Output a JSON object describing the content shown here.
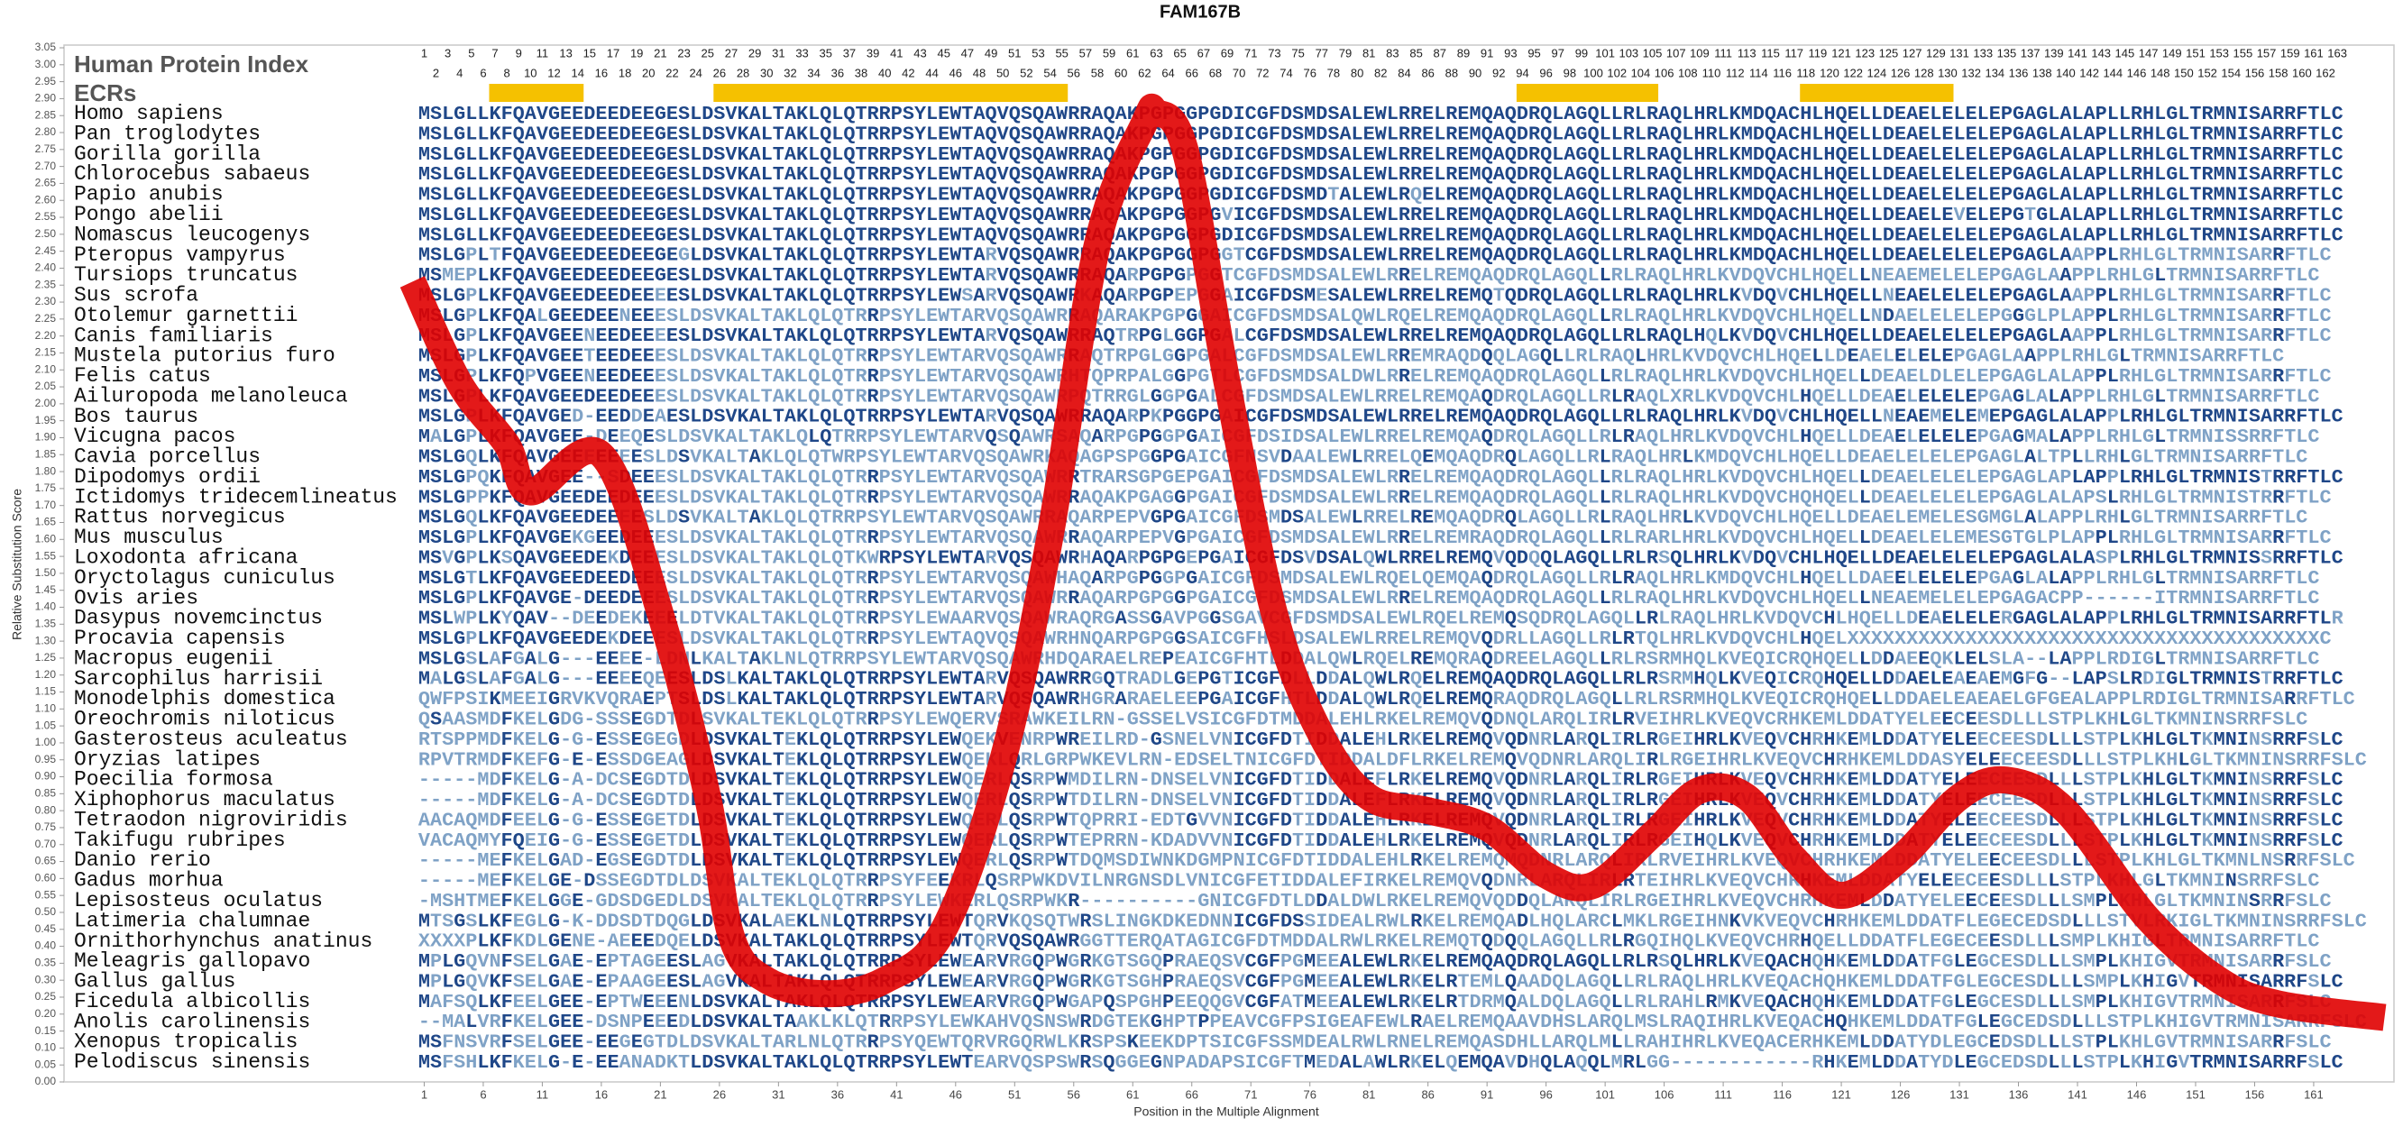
{
  "chart_data": {
    "type": "line",
    "title": "FAM167B",
    "panel_title": "Human Protein Index",
    "ecr_label": "ECRs",
    "xlabel": "Position in the Multiple Alignment",
    "ylabel": "Relative Substitution Score",
    "color": "#e00000",
    "xlim": [
      -29.5,
      167.8
    ],
    "ylim": [
      0,
      3.05
    ],
    "xticks": [
      1,
      6,
      11,
      16,
      21,
      26,
      31,
      36,
      41,
      46,
      51,
      56,
      61,
      66,
      71,
      76,
      81,
      86,
      91,
      96,
      101,
      106,
      111,
      116,
      121,
      126,
      131,
      136,
      141,
      146,
      151,
      156,
      161
    ],
    "yticks": [
      {
        "value": 0,
        "label": "0.00"
      },
      {
        "value": 0.05,
        "label": "0.05"
      },
      {
        "value": 0.1,
        "label": "0.10"
      },
      {
        "value": 0.15,
        "label": "0.15"
      },
      {
        "value": 0.2,
        "label": "0.20"
      },
      {
        "value": 0.25,
        "label": "0.25"
      },
      {
        "value": 0.3,
        "label": "0.30"
      },
      {
        "value": 0.35,
        "label": "0.35"
      },
      {
        "value": 0.4,
        "label": "0.40"
      },
      {
        "value": 0.45,
        "label": "0.45"
      },
      {
        "value": 0.5,
        "label": "0.50"
      },
      {
        "value": 0.55,
        "label": "0.55"
      },
      {
        "value": 0.6,
        "label": "0.60"
      },
      {
        "value": 0.65,
        "label": "0.65"
      },
      {
        "value": 0.7,
        "label": "0.70"
      },
      {
        "value": 0.75,
        "label": "0.75"
      },
      {
        "value": 0.8,
        "label": "0.80"
      },
      {
        "value": 0.85,
        "label": "0.85"
      },
      {
        "value": 0.9,
        "label": "0.90"
      },
      {
        "value": 0.95,
        "label": "0.95"
      },
      {
        "value": 1,
        "label": "1.00"
      },
      {
        "value": 1.05,
        "label": "1.05"
      },
      {
        "value": 1.1,
        "label": "1.10"
      },
      {
        "value": 1.15,
        "label": "1.15"
      },
      {
        "value": 1.2,
        "label": "1.20"
      },
      {
        "value": 1.25,
        "label": "1.25"
      },
      {
        "value": 1.3,
        "label": "1.30"
      },
      {
        "value": 1.35,
        "label": "1.35"
      },
      {
        "value": 1.4,
        "label": "1.40"
      },
      {
        "value": 1.45,
        "label": "1.45"
      },
      {
        "value": 1.5,
        "label": "1.50"
      },
      {
        "value": 1.55,
        "label": "1.55"
      },
      {
        "value": 1.6,
        "label": "1.60"
      },
      {
        "value": 1.65,
        "label": "1.65"
      },
      {
        "value": 1.7,
        "label": "1.70"
      },
      {
        "value": 1.75,
        "label": "1.75"
      },
      {
        "value": 1.8,
        "label": "1.80"
      },
      {
        "value": 1.85,
        "label": "1.85"
      },
      {
        "value": 1.9,
        "label": "1.90"
      },
      {
        "value": 1.95,
        "label": "1.95"
      },
      {
        "value": 2,
        "label": "2.00"
      },
      {
        "value": 2.05,
        "label": "2.05"
      },
      {
        "value": 2.1,
        "label": "2.10"
      },
      {
        "value": 2.15,
        "label": "2.15"
      },
      {
        "value": 2.2,
        "label": "2.20"
      },
      {
        "value": 2.25,
        "label": "2.25"
      },
      {
        "value": 2.3,
        "label": "2.30"
      },
      {
        "value": 2.35,
        "label": "2.35"
      },
      {
        "value": 2.4,
        "label": "2.40"
      },
      {
        "value": 2.45,
        "label": "2.45"
      },
      {
        "value": 2.5,
        "label": "2.50"
      },
      {
        "value": 2.55,
        "label": "2.55"
      },
      {
        "value": 2.6,
        "label": "2.60"
      },
      {
        "value": 2.65,
        "label": "2.65"
      },
      {
        "value": 2.7,
        "label": "2.70"
      },
      {
        "value": 2.75,
        "label": "2.75"
      },
      {
        "value": 2.8,
        "label": "2.80"
      },
      {
        "value": 2.85,
        "label": "2.85"
      },
      {
        "value": 2.9,
        "label": "2.90"
      },
      {
        "value": 2.95,
        "label": "2.95"
      },
      {
        "value": 3,
        "label": "3.00"
      },
      {
        "value": 3.05,
        "label": "3.05"
      }
    ],
    "x": [
      0,
      4,
      8,
      10,
      16,
      21,
      25,
      27,
      30,
      35,
      40,
      45,
      50,
      54,
      58,
      62,
      63,
      65.5,
      69,
      73,
      77,
      81,
      86,
      91,
      96,
      100,
      105,
      109,
      113,
      117,
      121,
      126,
      131,
      135,
      140,
      147,
      153,
      158,
      167
    ],
    "values": [
      2.36,
      2.06,
      1.88,
      1.74,
      1.85,
      1.38,
      0.84,
      0.43,
      0.3,
      0.26,
      0.3,
      0.45,
      0.95,
      1.61,
      2.47,
      2.83,
      2.86,
      2.74,
      2.06,
      1.38,
      1.02,
      0.84,
      0.8,
      0.75,
      0.61,
      0.58,
      0.73,
      0.86,
      0.84,
      0.66,
      0.55,
      0.66,
      0.84,
      0.89,
      0.8,
      0.48,
      0.3,
      0.23,
      0.19
    ],
    "ecrs": [
      {
        "start": 7,
        "end": 14,
        "color": "#f5c100"
      },
      {
        "start": 26,
        "end": 55,
        "color": "#f5c100"
      },
      {
        "start": 94,
        "end": 105,
        "color": "#f5c100"
      },
      {
        "start": 118,
        "end": 130,
        "color": "#f5c100"
      }
    ],
    "positions": [
      1,
      2,
      3,
      4,
      5,
      6,
      7,
      8,
      9,
      10,
      11,
      12,
      13,
      14,
      15,
      16,
      17,
      18,
      19,
      20,
      21,
      22,
      23,
      24,
      25,
      26,
      27,
      28,
      29,
      30,
      31,
      32,
      33,
      34,
      35,
      36,
      37,
      38,
      39,
      40,
      41,
      42,
      43,
      44,
      45,
      46,
      47,
      48,
      49,
      50,
      51,
      52,
      53,
      54,
      55,
      56,
      57,
      58,
      59,
      60,
      61,
      62,
      63,
      64,
      65,
      66,
      67,
      68,
      69,
      70,
      71,
      72,
      73,
      74,
      75,
      76,
      77,
      78,
      79,
      80,
      81,
      82,
      83,
      84,
      85,
      86,
      87,
      88,
      89,
      90,
      91,
      92,
      93,
      94,
      95,
      96,
      97,
      98,
      99,
      100,
      101,
      102,
      103,
      104,
      105,
      106,
      107,
      108,
      109,
      110,
      111,
      112,
      113,
      114,
      115,
      116,
      117,
      118,
      119,
      120,
      121,
      122,
      123,
      124,
      125,
      126,
      127,
      128,
      129,
      130,
      131,
      132,
      133,
      134,
      135,
      136,
      137,
      138,
      139,
      140,
      141,
      142,
      143,
      144,
      145,
      146,
      147,
      148,
      149,
      150,
      151,
      152,
      153,
      154,
      155,
      156,
      157,
      158,
      159,
      160,
      161,
      162,
      163
    ],
    "alignment": [
      {
        "species": "Homo sapiens",
        "sequence": "MSLGLLKFQAVGEEDEEDEEGESLDSVKALTAKLQLQTRRPSYLEWTAQVQSQAWRRAQAKPGPGGPGDICGFDSMDSALEWLRRELREMQAQDRQLAGQLLRLRAQLHRLKMDQACHLHQELLDEAELELELEPGAGLALAPLLRHLGLTRMNISARRFTLC"
      },
      {
        "species": "Pan troglodytes",
        "sequence": "MSLGLLKFQAVGEEDEEDEEGESLDSVKALTAKLQLQTRRPSYLEWTAQVQSQAWRRAQAKPGPGGPGDICGFDSMDSALEWLRRELREMQAQDRQLAGQLLRLRAQLHRLKMDQACHLHQELLDEAELELELEPGAGLALAPLLRHLGLTRMNISARRFTLC"
      },
      {
        "species": "Gorilla gorilla",
        "sequence": "MSLGLLKFQAVGEEDEEDEEGESLDSVKALTAKLQLQTRRPSYLEWTAQVQSQAWRRAQAKPGPGGPGDICGFDSMDSALEWLRRELREMQAQDRQLAGQLLRLRAQLHRLKMDQACHLHQELLDEAELELELEPGAGLALAPLLRHLGLTRMNISARRFTLC"
      },
      {
        "species": "Chlorocebus sabaeus",
        "sequence": "MSLGLLKFQAVGEEDEEDEEGESLDSVKALTAKLQLQTRRPSYLEWTAQVQSQAWRRAQAKPGPGGPGDICGFDSMDSALEWLRRELREMQAQDRQLAGQLLRLRAQLHRLKMDQACHLHQELLDEAELELELEPGAGLALAPLLRHLGLTRMNISARRFTLC"
      },
      {
        "species": "Papio anubis",
        "sequence": "MSLGLLKFQAVGEEDEEDEEGESLDSVKALTAKLQLQTRRPSYLEWTAQVQSQAWRRAQAKPGPGGPGDICGFDSMDTALEWLRQELREMQAQDRQLAGQLLRLRAQLHRLKMDQACHLHQELLDEAELELELEPGAGLALAPLLRHLGLTRMNISARRFTLC"
      },
      {
        "species": "Pongo abelii",
        "sequence": "MSLGLLKFQAVGEEDEEDEEGESLDSVKALTAKLQLQTRRPSYLEWTAQVQSQAWRRAQAKPGPGGPGVICGFDSMDSALEWLRRELREMQAQDRQLAGQLLRLRAQLHRLKMDQACHLHQELLDEAELEVELEPGTGLALAPLLRHLGLTRMNISARRFTLC"
      },
      {
        "species": "Nomascus leucogenys",
        "sequence": "MSLGLLKFQAVGEEDEEDEEGESLDSVKALTAKLQLQTRRPSYLEWTAQVQSQAWRRAQAKPGPGGPGDICGFDSMDSALEWLRRELREMQAQDRQLAGQLLRLRAQLHRLKMDQACHLHQELLDEAELELELEPGAGLALAPLLRHLGLTRMNISARRFTLC"
      },
      {
        "species": "Pteropus vampyrus",
        "sequence": "MSLGPLTFQAVGEEDEEDEEGEGLDSVKALTAKLQLQTRRPSYLEWTARVQSQAWRRAQAKPGPGGPGGTCGFDSMDSALEWLRRELREMQAQDRQLAGQLLRLRAQLHRLKMDQACHLHQELLDEAELELELEPGAGLAAPPLRHLGLTRMNISARRFTLC"
      },
      {
        "species": "Tursiops truncatus",
        "sequence": "MSMEPLKFQAVGEEDEEDEEGESLDSVKALTAKLQLQTRRPSYLEWTARVQSQAWRRAQARPGPGPGGTCGFDSMDSALEWLRRELREMQAQDRQLAGQLLRLRAQLHRLKVDQVCHLHQELLNEAEMELELEPGAGLAAPPLRHLGLTRMNISARRFTLC"
      },
      {
        "species": "Sus scrofa",
        "sequence": "MSLGPLKFQAVGEEDEEDEEEESLDSVKALTAKLQLQTRRPSYLEWSARVQSQAWRKAQARPGPEPGGAICGFDSMESALEWLRRELREMQTQDRQLAGQLLRLRAQLHRLKVDQVCHLHQELLNEAELELELEPGAGLAAPPLRHLGLTRMNISARRFTLC"
      },
      {
        "species": "Otolemur garnettii",
        "sequence": "MSLGPLKFQALGEEDEENEEESLDSVKALTAKLQLQTRRPSYLEWTARVQSQAWRRAQARAKPGPGGAICGFDSMDSALQWLRQELREMQAQDRQLAGQLLRLRAQLHRLKVDQVCHLHQELLNDAELELELEPGGGLPLAPPLRHLGLTRMNISARRFTLC"
      },
      {
        "species": "Canis familiaris",
        "sequence": "MSLGPLKFQAVGEENEEDEEEESLDSVKALTAKLQLQTRRPSYLEWTARVQSQAWRRAQTRPGLGGPGALCGFDSMDSALEWLRRELREMQAQDRQLAGQLLRLRAQLHQLKVDQVCHLHQELLDEAELELELEPGAGLAAPPLRHLGLTRMNISARRFTLC"
      },
      {
        "species": "Mustela putorius furo",
        "sequence": "MSLGPLKFQAVGEETEEDEEESLDSVKALTAKLQLQTRRPSYLEWTARVQSQAWRRAQTRPGLGGPGALCGFDSMDSALEWLRREMRAQDQQLAGQLLRLRAQLHRLKVDQVCHLHQELLDEAELELELEPGAGLAAPPLRHLGLTRMNISARRFTLC"
      },
      {
        "species": "Felis catus",
        "sequence": "MSLGPLKFQPVGEENEEDEEESLDSVKALTAKLQLQTRRPSYLEWTARVQSQAWRHTQPRPALGGPGTLCGFDSMDSALDWLRRELREMQAQDRQLAGQLLRLRAQLHRLKVDQVCHLHQELLDEAELDLELEPGAGLALAPPLRHLGLTRMNISARRFTLC"
      },
      {
        "species": "Ailuropoda melanoleuca",
        "sequence": "MSLGPLKFQAVGEEDEEDEEESLDSVKALTAKLQLQTRRPSYLEWTARVQSQAWRPQTRRGLGGPGALCGFDSMDSALEWLRRELREMQAQDRQLAGQLLRLRAQLXRLKVDQVCHLHQELLDEAELELELEPGAGLALAPPLRHLGLTRMNISARRFTLC"
      },
      {
        "species": "Bos taurus",
        "sequence": "MSLGPLKFQAVGED-EEDDEAESLDSVKALTAKLQLQTRRPSYLEWTARVQSQAWRRAQARPKPGGPGAICGFDSMDSALEWLRRELREMQAQDRQLAGQLLRLRAQLHRLKVDQVCHLHQELLNEAEMELEMEPGAGLALAPPLRHLGLTRMNISARRFTLC"
      },
      {
        "species": "Vicugna pacos",
        "sequence": "MALGPLKFQAVGEE-DEEQESLDSVKALTAKLQLQTRRPSYLEWTARVQSQAWRSAQARPGPGGPGAICGFDSIDSALEWLRRELREMQAQDRQLAGQLLRLRAQLHRLKVDQVCHLHQELLDEAELELELEPGAGMALAPPLRHLGLTRMNISSRRFTLC"
      },
      {
        "species": "Cavia porcellus",
        "sequence": "MSLGQLKFQAVGEEEEEEESLDSVKALTAKLQLQTWRPSYLEWTARVQSQAWRKAQAGPSPGGPGAICGFNSVDAALEWLRRELQEMQAQDRQLAGQLLRLRAQLHRLKMDQVCHLHQELLDEAELELELEPGAGLALTPLLRHLGLTRMNISARRFTLC"
      },
      {
        "species": "Dipodomys ordii",
        "sequence": "MSLGPQKFQAVGEE--SDEEESLDSVKALTAKLQLQTRRPSYLEWTARVQSQAWRRTRARSGPGEPGAICGFDSMDSALEWLRRELREMQAQDRQLAGQLLRLRAQLHRLKVDQVCHLHQELLDEAELELELEPGAGLAPLAPPLRHLGLTRMNISTRRFTLC"
      },
      {
        "species": "Ictidomys tridecemlineatus",
        "sequence": "MSLGPPKFQAVGEEDEEDEEESLDSVKALTAKLQLQTRRPSYLEWTARVQSQAWRRAQAKPGAGGPGAICGFDSMDSALEWLRRELREMQAQDRQLAGQLLRLRAQLHRLKVDQVCHQHQELLDEAELELELEPGAGLALAPSLRHLGLTRMNISTRRFTLC"
      },
      {
        "species": "Rattus norvegicus",
        "sequence": "MSLGQLKFQAVGEEDEEEESLDSVKALTAKLQLQTRRPSYLEWTARVQSQAWRRAQARPEPVGPGAICGFDSMDSALEWLRRELREMQAQDRQLAGQLLRLRAQLHRLKVDQVCHLHQELLDEAELEMELESGMGLALAPPLRHLGLTRMNISARRFTLC"
      },
      {
        "species": "Mus musculus",
        "sequence": "MSLGPLKFQAVGEKGEEDEEESLDSVKALTAKLQLQTRRPSYLEWTARVQSQAWRRAQARPEPVGPGAICGFDSMDSALEWLRRELREMRAQDRQLAGQLLRLRARLHRLKVDQVCHLHQELLDEAELELEMESGTGLPLAPPLRHLGLTRMNISARRFTLC"
      },
      {
        "species": "Loxodonta africana",
        "sequence": "MSVGPLKSQAVGEEDEKDEEESLDSVKALTAKLQLQTKWRPSYLEWTARVQSQAWRHAQARPGPGEPGAICGFDSVDSALQWLRRELREMQVQDQQLAGQLLRLRSQLHRLKVDQVCHLHQELLDEAELELELEPGAGLALASPLRHLGLTRMNISSRRFTLC"
      },
      {
        "species": "Oryctolagus cuniculus",
        "sequence": "MSLGTLKFQAVGEEDEEDEEESLDSVKALTAKLQLQTRRPSYLEWTARVQSQAWHAQARPGPGGPGAICGFDSMDSALEWLRQELQEMQAQDRQLAGQLLRLRAQLHRLKMDQVCHLHQELLDAEELELELEPGAGLALAPPLRHLGLTRMNISARRFTLC"
      },
      {
        "species": "Ovis aries",
        "sequence": "MSLGPLKFQAVGE-DEEDEEESLDSVKALTAKLQLQTRRPSYLEWTARVQSQAWRRAQARPGPGGPGAICGFDSMDSALEWLRRELREMQAQDRQLAGQLLRLRAQLHRLKVDQVCHLHQELLNEAEMELELEPGAGACPP------ITRMNISARRFTLC"
      },
      {
        "species": "Dasypus novemcinctus",
        "sequence": "MSLWPLKYQAV--DEEDEKEEELDTVKALTAKLQLQTRRPSYLEWAARVQSQAWRAQRGASSGAVPGGSGAVCGFDSMDSALEWLRQELREMQSQDRQLAGQLLRLRAQLHRLKVDQVCHLHQELLDEAELELERGAGLALAPPLRHLGLTRMNISARRFTLR"
      },
      {
        "species": "Procavia capensis",
        "sequence": "MSLGPLKFQAVGEEDEKDEEESLDSVKALTAKLQLQTRRPSYLEWTAQVQSQAWRHNQARPGPGGSAICGFHSLDSALEWLRRELREMQVQDRLLAGQLLRLRTQLHRLKVDQVCHLHQELXXXXXXXXXXXXXXXXXXXXXXXXXXXXXXXXXXXXXXXXC"
      },
      {
        "species": "Macropus eugenii",
        "sequence": "MSLGSLAFGALG---EEEE-LDNLKALTAKLNLQTRRPSYLEWTARVQSQAWRHDQARAELREPEAICGFHTLDDALQWLRQELREMQRAQDREELAGQLLRLRSRMHQLKVEQICRQHQELLDDAEEQKLELSLA--LAPPLRDIGLTRMNISARRFTLC"
      },
      {
        "species": "Sarcophilus harrisii",
        "sequence": "MALGSLAFGALG---EEEEQEESLDSLKALTAKLQLQTRRPSYLEWTARVQSQAWRRGQTRADLGEPGTICGFDLLDDALQWLRQELREMQAQDRQLAGQLLRLRSRMHQLKVEQICRQHQELLDDAELEAEAEMGFG--LAPSLRDIGLTRMNISTRRFTLC"
      },
      {
        "species": "Monodelphis domestica",
        "sequence": "QWFPSIKMEEIGRVKVQRAEPTSLDSLKALTAKLQLQTRRPSYLEWTARVQSQAWRHGRARAELEEPGAICGFHTLDDALQWLRQELREMQRAQDRQLAGQLLRLRSRMHQLKVEQICRQHQELLDDAELEAEAELGFGEALAPPLRDIGLTRMNISARRFTLC"
      },
      {
        "species": "Oreochromis niloticus",
        "sequence": "QSAASMDFKELGDG-SSSEGDTDLSVKALTEKLQLQTRRPSYLEWQERVSRAWKEILRN-GSSELVSICGFDTMDDALEHLRKELREMQVQDNQLARQLIRLRVEIHRLKVEQVCRHKEMLDDATYELEECEESDLLLSTPLKHLGLTKMNINSRRFSLC"
      },
      {
        "species": "Gasterosteus aculeatus",
        "sequence": "RTSPPMDFKELG-G-ESSEGEGDLDSVKALTEKLQLQTRRPSYLEWQEKVENRPWREILRD-GSNELVNICGFDTIDDALEHLRKELREMQVQDNRLARQLIRLRGEIHRLKVEQVCHRHKEMLDDATYELEECEESDLLLSTPLKHLGLTKMNINSRRFSLC"
      },
      {
        "species": "Oryzias latipes",
        "sequence": "RPVTRMDFKEFG-E-ESSDGEAGLDSVKALTEKLQLQTRRPSYLEWQEKLQRLGRPWKEVLRN-EDSELTNICGFDTIDDALDFLRKELREMQVQDNRLARQLIRLRGEIHRLKVEQVCHRHKEMLDDASYELEECEESDLLLSTPLKHLGLTKMNINSRRFSLC"
      },
      {
        "species": "Poecilia formosa",
        "sequence": "-----MDFKELG-A-DCSEGDTDLDSVKALTEKLQLQTRRPSYLEWQERLQSRPWMDILRN-DNSELVNICGFDTIDDALEFLRKELREMQVQDNRLARQLIRLRGEIHRLKVEQVCHRHKEMLDDATYELEECEESDLLLSTPLKHLGLTKMNINSRRFSLC"
      },
      {
        "species": "Xiphophorus maculatus",
        "sequence": "-----MDFKELG-A-DCSEGDTDLDSVKALTEKLQLQTRRPSYLEWQERLQSRPWTDILRN-DNSELVNICGFDTIDDALEFLRKELREMQVQDNRLARQLIRLRGEIHRLKVEQVCHRHKEMLDDATYELEECEESDLLLSTPLKHLGLTKMNINSRRFSLC"
      },
      {
        "species": "Tetraodon nigroviridis",
        "sequence": "AACAQMDFEELG-G-ESSEGETDLDSVKALTEKLQLQTRRPSYLEWQERLQSRPWTQPRRI-EDTGVVNICGFDTIDDALEHLRKELREMQVQDNRLARQLIRLRGEIHRLKVEQVCHRHKEMLDDATYELEECEESDLLLSTPLKHLGLTKMNINSRRFSLC"
      },
      {
        "species": "Takifugu rubripes",
        "sequence": "VACAQMYFQEIG-G-ESSEGETDLDSVKALTEKLQLQTRRPSYLEWQERLQSRPWTEPRRN-KDADVVNICGFDTIDDALEHLRKELREMQVQDNRLARQLIRLRGEIHQLKVEQVCHRHKEMLDDATYELEECEESDLLLSTPLKHLGLTKMNINSRRFSLC"
      },
      {
        "species": "Danio rerio",
        "sequence": "-----MEFKELGAD-EGSEGDTDLDSVKALTEKLQLQTRRPSYLEWQERLQSRPWTDQMSDIWNKDGMPNICGFDTIDDALEHLRKELREMQMQDNRLARQLIRLRVEIHRLKVEQVCHRHKEMLDDATYELEECEESDLLLSTPLKHLGLTKMNLNSRRFSLC"
      },
      {
        "species": "Gadus morhua",
        "sequence": "-----MEFKELGE-DSSEGDTDLDSVKALTEKLQLQTRRPSYFEEKRLQSRPWKDVILNRGNSDLVNICGFETIDDALEFIRKELREMQVQDNRLARQLIRLRTEIHRLKVEQVCHRHKEMLDDATYELEECEESDLLLSTPLKHLGLTKMNINSRRFSLC"
      },
      {
        "species": "Lepisosteus oculatus",
        "sequence": "-MSHTMEFKELGGE-GDSDGEDLDSVKALTEKLQLQTRRPSYLEWKERLQSRPWKR----------GNICGFDTLDDALDWLRKELREMQVQDDQLARQLIRLRGEIHRLKVEQVCHRHKEMLDDATYELEECEESDLLLSMPLKHLGLTKMNINSRRFSLC"
      },
      {
        "species": "Latimeria chalumnae",
        "sequence": "MTSGSLKFEGLG-K-DDSDTDQGLDSVKALAEKLNLQTRRPSYLEWTQRVKQSQTWRSLINGKDKEDNNICGFDSSIDEALRWLRKELREMQADLHQLARCLMKLRGEIHNKVKVEQVCHRHKEMLDDATFLEGECEDSDLLLSTVLRKIGLTKMNINSRRFSLC"
      },
      {
        "species": "Ornithorhynchus anatinus",
        "sequence": "XXXXPLKFKDLGENE-AEEEDQELDSVKALTAKLQLQTRRPSYLEWTQRVQSQAWRGGTTERQATAGICGFDTMDDALRWLRKELREMQTQDQQLAGQLLRLRGQIHQLKVEQVCHRHQELLDDATFLEGECEESDLLLSMPLKHIGLTRMNISARRFTLC"
      },
      {
        "species": "Meleagris gallopavo",
        "sequence": "MPLGQVNFSELGAE-EPTAGEESLAGVKALTAKLQLQTRRPSYLEWEARVRGQPWGRKGTSGQPRAEQSVCGFPGMEEALEWLRKELREMQAQDRQLAGQLLRLRSQLHRLKVEQACHQHKEMLDDATFGLEGCESDLLLSMPLKHIGVTRMNISARRFSLC"
      },
      {
        "species": "Gallus gallus",
        "sequence": "MPLGQVKFSELGAE-EPAAGEESLAGVKALTAKLQLQTRRPSYLEWEARVRGQPWGRKGTSGHPRAEQSVCGFPGMEEALEWLRKELRTEMLQAADQLAGQLLRLRAQLHRLKVEQACHQHKEMLDDATFGLEGCESDLLLSMPLKHIGVTRMNISARRFSLC"
      },
      {
        "species": "Ficedula albicollis",
        "sequence": "MAFSQLKFEELGEE-EPTWEEENLDSVKALTAKLQLQTRRPSYLEWEARVRGQPWGAPQSPGHPEEQQGVCGFATMEEALEWLRKELRTDRMQALDQLAGQLLRLRAHLRMKVEQACHQHKEMLDDATFGLEGCESDLLLSMPLKHIGVTRMNISARRFSLC"
      },
      {
        "species": "Anolis carolinensis",
        "sequence": "--MALVRFKELGEE-DSNPEEEDLDSVKALTAAKLKLQTRRPSYLEWKAHVQSNSWRDGTEKGHPTPPEAVCGFPSIGEAFEWLRAELREMQAAVDHSLARQLMSLRAQIHRLKVEQACHQHKEMLDDATFGLEGCEDSDLLLSTPLKHIGVTRMNISARRFSLC"
      },
      {
        "species": "Xenopus tropicalis",
        "sequence": "MSFNSVRFSELGEE-EEGEGTDLDSVKALTARLNLQTRRPSYQEWTQRVRGQRWLKRSPSKEEKDPTSICGFSSMDEALRWLRNELREMQASDHLLARQLMLLRAHIHRLKVEQACERHKEMLDDATYDLEGCEDSDLLLSTPLKHLGVTRMNISARRFSLC"
      },
      {
        "species": "Pelodiscus sinensis",
        "sequence": "MSFSHLKFKELG-E-EEANADKTLDSVKALTAKLQLQTRRPSYLEWTEARVQSPSWRSQGGEGNPADAPSICGFTMEDALAWLRKELQEMQAVDHQLAQQLMRLGG------------RHKEMLDDATYDLEGCEDSDLLLSTPLKHIGVTRMNISARRFSLC"
      }
    ]
  }
}
